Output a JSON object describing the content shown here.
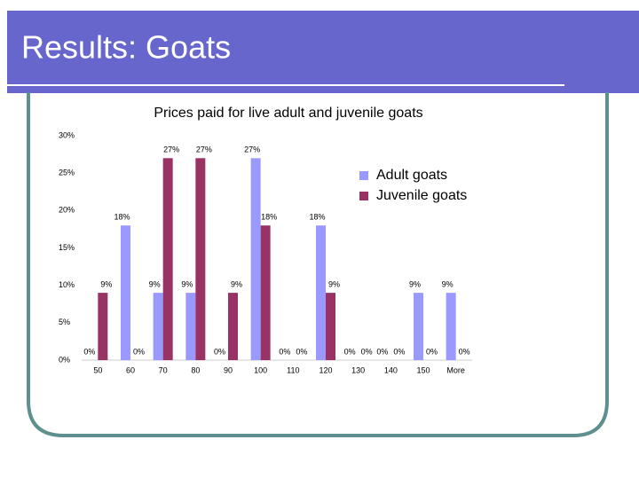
{
  "slide_title": "Results: Goats",
  "chart_data": {
    "type": "bar",
    "title": "Prices paid for live adult and juvenile goats",
    "categories": [
      "50",
      "60",
      "70",
      "80",
      "90",
      "100",
      "110",
      "120",
      "130",
      "140",
      "150",
      "More"
    ],
    "series": [
      {
        "name": "Adult goats",
        "color": "#9999ff",
        "values": [
          0,
          18,
          9,
          9,
          0,
          27,
          0,
          18,
          0,
          0,
          9,
          9
        ],
        "value_labels": [
          "0%",
          "18%",
          "9%",
          "9%",
          "0%",
          "27%",
          "0%",
          "18%",
          "0%",
          "0%",
          "9%",
          "9%"
        ]
      },
      {
        "name": "Juvenile goats",
        "color": "#993366",
        "values": [
          9,
          0,
          27,
          27,
          9,
          18,
          0,
          9,
          0,
          0,
          0,
          0
        ],
        "value_labels": [
          "9%",
          "0%",
          "27%",
          "27%",
          "9%",
          "18%",
          "0%",
          "9%",
          "0%",
          "0%",
          "0%",
          "0%"
        ]
      }
    ],
    "ylim": [
      0,
      30
    ],
    "yticks": [
      {
        "value": 0,
        "label": "0%"
      },
      {
        "value": 5,
        "label": "5%"
      },
      {
        "value": 10,
        "label": "10%"
      },
      {
        "value": 15,
        "label": "15%"
      },
      {
        "value": 20,
        "label": "20%"
      },
      {
        "value": 25,
        "label": "25%"
      },
      {
        "value": 30,
        "label": "30%"
      }
    ],
    "grid": false,
    "legend": "right"
  }
}
